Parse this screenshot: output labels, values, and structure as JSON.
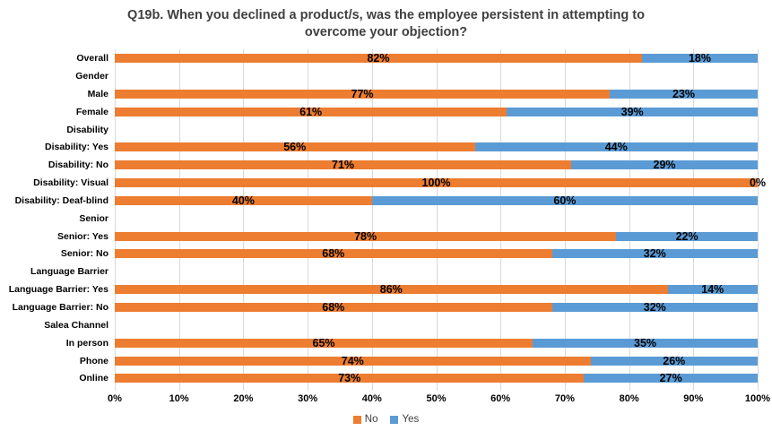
{
  "chart_data": {
    "type": "bar",
    "orientation": "horizontal-stacked",
    "title": "Q19b. When you declined a product/s, was the employee persistent in attempting to overcome your objection?",
    "value_suffix": "%",
    "series": [
      {
        "name": "No",
        "color": "#ED7D31"
      },
      {
        "name": "Yes",
        "color": "#5B9BD5"
      }
    ],
    "rows": [
      {
        "label": "Overall",
        "values": [
          82,
          18
        ]
      },
      {
        "label": "Gender",
        "values": null
      },
      {
        "label": "Male",
        "values": [
          77,
          23
        ]
      },
      {
        "label": "Female",
        "values": [
          61,
          39
        ]
      },
      {
        "label": "Disability",
        "values": null
      },
      {
        "label": "Disability: Yes",
        "values": [
          56,
          44
        ]
      },
      {
        "label": "Disability: No",
        "values": [
          71,
          29
        ]
      },
      {
        "label": "Disability: Visual",
        "values": [
          100,
          0
        ]
      },
      {
        "label": "Disability: Deaf-blind",
        "values": [
          40,
          60
        ]
      },
      {
        "label": "Senior",
        "values": null
      },
      {
        "label": "Senior: Yes",
        "values": [
          78,
          22
        ]
      },
      {
        "label": "Senior: No",
        "values": [
          68,
          32
        ]
      },
      {
        "label": "Language Barrier",
        "values": null
      },
      {
        "label": "Language Barrier: Yes",
        "values": [
          86,
          14
        ]
      },
      {
        "label": "Language Barrier: No",
        "values": [
          68,
          32
        ]
      },
      {
        "label": "Salea Channel",
        "values": null
      },
      {
        "label": "In person",
        "values": [
          65,
          35
        ]
      },
      {
        "label": "Phone",
        "values": [
          74,
          26
        ]
      },
      {
        "label": "Online",
        "values": [
          73,
          27
        ]
      }
    ],
    "x_ticks": [
      "0%",
      "10%",
      "20%",
      "30%",
      "40%",
      "50%",
      "60%",
      "70%",
      "80%",
      "90%",
      "100%"
    ],
    "xlim": [
      0,
      100
    ],
    "grid": true,
    "legend_position": "bottom",
    "colors": {
      "gridline": "#D9D9D9",
      "title_text": "#404040",
      "label_text": "#000000"
    }
  }
}
